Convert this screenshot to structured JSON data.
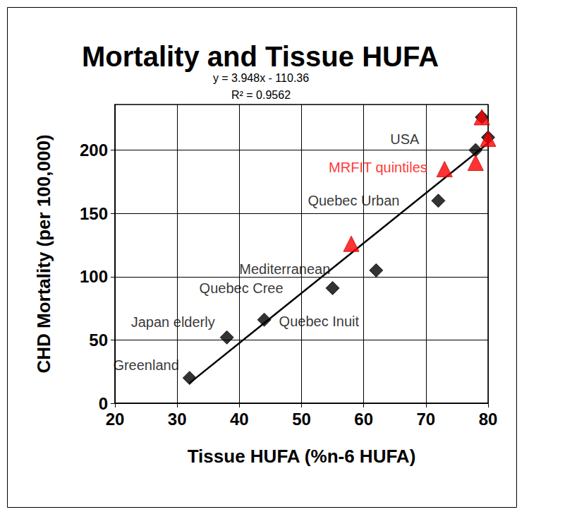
{
  "chart_data": {
    "type": "scatter",
    "title": "Mortality and Tissue HUFA",
    "x_label": "Tissue HUFA (%n-6 HUFA)",
    "y_label": "CHD Mortality (per 100,000)",
    "xlim": [
      20,
      80
    ],
    "xticks": [
      20,
      30,
      40,
      50,
      60,
      70,
      80
    ],
    "ylim": [
      0,
      236
    ],
    "yticks": [
      0,
      50,
      100,
      150,
      200
    ],
    "grid": true,
    "series": [
      {
        "color": "#000000",
        "marker": "diamond",
        "x": [
          32,
          38,
          44,
          55,
          62,
          72,
          78,
          79,
          80
        ],
        "values": [
          20,
          52,
          66,
          91,
          105,
          160,
          200,
          226,
          210
        ],
        "point_labels": [
          "Greenland",
          "Japan elderly",
          "Quebec Inuit",
          "Quebec Cree",
          "Mediterranean",
          "Quebec Urban",
          "USA",
          null,
          null
        ]
      },
      {
        "name": "MRFIT quintiles",
        "color": "#ff0000",
        "marker": "triangle",
        "x": [
          58,
          73,
          78,
          79,
          80
        ],
        "values": [
          126,
          185,
          190,
          226,
          209
        ]
      }
    ],
    "trendline": {
      "slope": 3.948,
      "intercept": -110.36,
      "x": [
        32,
        80
      ],
      "color": "#000000",
      "equation": "y = 3.948x - 110.36",
      "r2_label": "R² = 0.9562"
    }
  }
}
